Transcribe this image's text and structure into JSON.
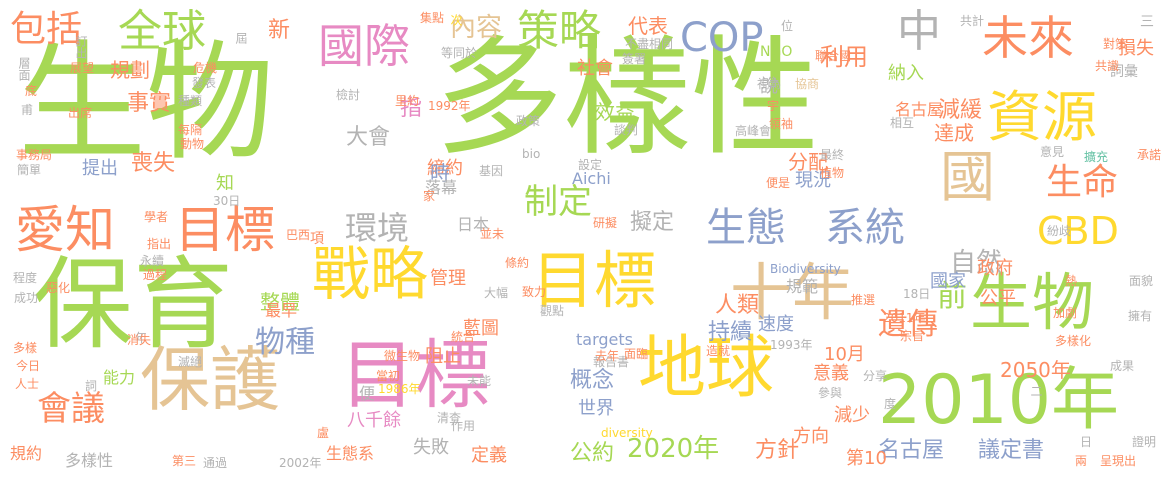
{
  "palette": {
    "green": "#a6d854",
    "yellow": "#ffd92f",
    "tan": "#e5c494",
    "pink": "#e78ac3",
    "blue": "#8da0cb",
    "orange": "#fc8d62",
    "teal": "#66c2a5",
    "grey": "#b3b3b3"
  },
  "words": [
    {
      "text": "生物",
      "color": "green"
    },
    {
      "text": "多樣性",
      "color": "green"
    },
    {
      "text": "保育",
      "color": "green"
    },
    {
      "text": "目標",
      "color": "pink"
    },
    {
      "text": "保護",
      "color": "tan"
    },
    {
      "text": "地球",
      "color": "yellow"
    },
    {
      "text": "2010年",
      "color": "green"
    },
    {
      "text": "戰略",
      "color": "yellow"
    },
    {
      "text": "目標",
      "color": "yellow"
    },
    {
      "text": "十年",
      "color": "tan"
    },
    {
      "text": "生物",
      "color": "green"
    },
    {
      "text": "資源",
      "color": "yellow"
    },
    {
      "text": "國",
      "color": "tan"
    },
    {
      "text": "愛知",
      "color": "orange"
    },
    {
      "text": "目標",
      "color": "orange"
    },
    {
      "text": "國際",
      "color": "pink"
    },
    {
      "text": "未來",
      "color": "orange"
    },
    {
      "text": "中",
      "color": "grey"
    },
    {
      "text": "全球",
      "color": "green"
    },
    {
      "text": "策略",
      "color": "green"
    },
    {
      "text": "COP",
      "color": "blue"
    },
    {
      "text": "生態",
      "color": "blue"
    },
    {
      "text": "系統",
      "color": "blue"
    },
    {
      "text": "CBD",
      "color": "yellow"
    },
    {
      "text": "生命",
      "color": "orange"
    },
    {
      "text": "包括",
      "color": "orange"
    },
    {
      "text": "會議",
      "color": "orange"
    },
    {
      "text": "制定",
      "color": "green"
    },
    {
      "text": "環境",
      "color": "grey"
    },
    {
      "text": "遺傳",
      "color": "orange"
    },
    {
      "text": "前",
      "color": "green"
    },
    {
      "text": "自然",
      "color": "grey"
    },
    {
      "text": "物種",
      "color": "blue"
    },
    {
      "text": "2020年",
      "color": "green"
    },
    {
      "text": "內容",
      "color": "tan"
    },
    {
      "text": "利用",
      "color": "orange"
    },
    {
      "text": "事實",
      "color": "orange"
    },
    {
      "text": "喪失",
      "color": "orange"
    },
    {
      "text": "大會",
      "color": "grey"
    },
    {
      "text": "擬定",
      "color": "grey"
    },
    {
      "text": "人類",
      "color": "orange"
    },
    {
      "text": "持續",
      "color": "blue"
    },
    {
      "text": "概念",
      "color": "blue"
    },
    {
      "text": "公約",
      "color": "green"
    },
    {
      "text": "方針",
      "color": "orange"
    },
    {
      "text": "名古屋",
      "color": "blue"
    },
    {
      "text": "議定書",
      "color": "blue"
    },
    {
      "text": "2050年",
      "color": "orange"
    },
    {
      "text": "整體",
      "color": "green"
    },
    {
      "text": "規範",
      "color": "grey"
    },
    {
      "text": "新",
      "color": "orange"
    },
    {
      "text": "規劃",
      "color": "orange"
    },
    {
      "text": "效益",
      "color": "green"
    },
    {
      "text": "減緩",
      "color": "orange"
    },
    {
      "text": "達成",
      "color": "orange"
    },
    {
      "text": "納入",
      "color": "green"
    },
    {
      "text": "分配",
      "color": "orange"
    },
    {
      "text": "現況",
      "color": "blue"
    },
    {
      "text": "締約",
      "color": "orange"
    },
    {
      "text": "提出",
      "color": "blue"
    },
    {
      "text": "時",
      "color": "blue"
    },
    {
      "text": "代表",
      "color": "orange"
    },
    {
      "text": "社會",
      "color": "orange"
    },
    {
      "text": "國家",
      "color": "blue"
    },
    {
      "text": "政府",
      "color": "orange"
    },
    {
      "text": "公平",
      "color": "orange"
    },
    {
      "text": "管理",
      "color": "orange"
    },
    {
      "text": "藍圖",
      "color": "orange"
    },
    {
      "text": "阻止",
      "color": "orange"
    },
    {
      "text": "10月",
      "color": "orange"
    },
    {
      "text": "意義",
      "color": "orange"
    },
    {
      "text": "速度",
      "color": "blue"
    },
    {
      "text": "世界",
      "color": "blue"
    },
    {
      "text": "減少",
      "color": "orange"
    },
    {
      "text": "方向",
      "color": "orange"
    },
    {
      "text": "第10",
      "color": "orange"
    },
    {
      "text": "定義",
      "color": "orange"
    },
    {
      "text": "失敗",
      "color": "grey"
    },
    {
      "text": "多樣性",
      "color": "grey"
    },
    {
      "text": "規約",
      "color": "orange"
    },
    {
      "text": "生態系",
      "color": "orange"
    },
    {
      "text": "八千餘",
      "color": "pink"
    },
    {
      "text": "targets",
      "color": "blue"
    },
    {
      "text": "Aichi",
      "color": "blue"
    },
    {
      "text": "項",
      "color": "orange"
    },
    {
      "text": "日本",
      "color": "grey"
    },
    {
      "text": "能力",
      "color": "green"
    },
    {
      "text": "最早",
      "color": "orange"
    },
    {
      "text": "指",
      "color": "pink"
    },
    {
      "text": "知",
      "color": "green"
    },
    {
      "text": "便",
      "color": "grey"
    },
    {
      "text": "落幕",
      "color": "grey"
    },
    {
      "text": "說",
      "color": "grey"
    },
    {
      "text": "名古屋",
      "color": "orange"
    },
    {
      "text": "NGO",
      "color": "green"
    },
    {
      "text": "共計",
      "color": "grey"
    },
    {
      "text": "三",
      "color": "grey"
    },
    {
      "text": "損失",
      "color": "orange"
    },
    {
      "text": "詞彙",
      "color": "grey"
    },
    {
      "text": "對策",
      "color": "orange"
    },
    {
      "text": "共識",
      "color": "orange"
    },
    {
      "text": "視為",
      "color": "grey"
    },
    {
      "text": "協商",
      "color": "tan"
    },
    {
      "text": "聯合國",
      "color": "orange"
    },
    {
      "text": "位",
      "color": "grey"
    },
    {
      "text": "宇",
      "color": "orange"
    },
    {
      "text": "集點",
      "color": "orange"
    },
    {
      "text": "次",
      "color": "yellow"
    },
    {
      "text": "不盡相同",
      "color": "grey"
    },
    {
      "text": "簽署",
      "color": "grey"
    },
    {
      "text": "等同於",
      "color": "grey"
    },
    {
      "text": "屆",
      "color": "grey"
    },
    {
      "text": "危機",
      "color": "orange"
    },
    {
      "text": "發表",
      "color": "grey"
    },
    {
      "text": "種類",
      "color": "grey"
    },
    {
      "text": "每隔",
      "color": "orange"
    },
    {
      "text": "動物",
      "color": "orange"
    },
    {
      "text": "訂出",
      "color": "grey"
    },
    {
      "text": "展望",
      "color": "orange"
    },
    {
      "text": "層面",
      "color": "grey"
    },
    {
      "text": "底",
      "color": "orange"
    },
    {
      "text": "甫",
      "color": "grey"
    },
    {
      "text": "出席",
      "color": "orange"
    },
    {
      "text": "事務局",
      "color": "orange"
    },
    {
      "text": "簡單",
      "color": "grey"
    },
    {
      "text": "檢討",
      "color": "grey"
    },
    {
      "text": "里約",
      "color": "orange"
    },
    {
      "text": "1992年",
      "color": "orange"
    },
    {
      "text": "政策",
      "color": "grey"
    },
    {
      "text": "談判",
      "color": "grey"
    },
    {
      "text": "bio",
      "color": "grey"
    },
    {
      "text": "基因",
      "color": "grey"
    },
    {
      "text": "設定",
      "color": "grey"
    },
    {
      "text": "便是",
      "color": "orange"
    },
    {
      "text": "高峰會",
      "color": "grey"
    },
    {
      "text": "領袖",
      "color": "orange"
    },
    {
      "text": "最終",
      "color": "grey"
    },
    {
      "text": "植物",
      "color": "orange"
    },
    {
      "text": "意見",
      "color": "grey"
    },
    {
      "text": "擴充",
      "color": "teal"
    },
    {
      "text": "承諾",
      "color": "orange"
    },
    {
      "text": "相互",
      "color": "grey"
    },
    {
      "text": "學者",
      "color": "orange"
    },
    {
      "text": "30日",
      "color": "grey"
    },
    {
      "text": "家",
      "color": "orange"
    },
    {
      "text": "並未",
      "color": "orange"
    },
    {
      "text": "研擬",
      "color": "orange"
    },
    {
      "text": "條約",
      "color": "orange"
    },
    {
      "text": "巴西",
      "color": "orange"
    },
    {
      "text": "指出",
      "color": "orange"
    },
    {
      "text": "永續",
      "color": "grey"
    },
    {
      "text": "過程",
      "color": "orange"
    },
    {
      "text": "程度",
      "color": "grey"
    },
    {
      "text": "成功",
      "color": "grey"
    },
    {
      "text": "惡化",
      "color": "orange"
    },
    {
      "text": "大幅",
      "color": "grey"
    },
    {
      "text": "致力",
      "color": "orange"
    },
    {
      "text": "觀點",
      "color": "grey"
    },
    {
      "text": "Biodiversity",
      "color": "blue"
    },
    {
      "text": "推選",
      "color": "orange"
    },
    {
      "text": "18日",
      "color": "grey"
    },
    {
      "text": "熱",
      "color": "orange"
    },
    {
      "text": "紛歧",
      "color": "grey"
    },
    {
      "text": "擁有",
      "color": "grey"
    },
    {
      "text": "面貌",
      "color": "grey"
    },
    {
      "text": "2011年",
      "color": "orange"
    },
    {
      "text": "加劇",
      "color": "orange"
    },
    {
      "text": "宗旨",
      "color": "orange"
    },
    {
      "text": "多樣化",
      "color": "orange"
    },
    {
      "text": "1993年",
      "color": "grey"
    },
    {
      "text": "分享",
      "color": "grey"
    },
    {
      "text": "成果",
      "color": "grey"
    },
    {
      "text": "參與",
      "color": "grey"
    },
    {
      "text": "二",
      "color": "grey"
    },
    {
      "text": "度",
      "color": "grey"
    },
    {
      "text": "年",
      "color": "grey"
    },
    {
      "text": "多樣",
      "color": "orange"
    },
    {
      "text": "今日",
      "color": "orange"
    },
    {
      "text": "人士",
      "color": "orange"
    },
    {
      "text": "消失",
      "color": "orange"
    },
    {
      "text": "滅絕",
      "color": "grey"
    },
    {
      "text": "微生物",
      "color": "orange"
    },
    {
      "text": "統合",
      "color": "orange"
    },
    {
      "text": "報告書",
      "color": "grey"
    },
    {
      "text": "面臨",
      "color": "orange"
    },
    {
      "text": "去年",
      "color": "orange"
    },
    {
      "text": "造就",
      "color": "orange"
    },
    {
      "text": "當初",
      "color": "orange"
    },
    {
      "text": "1986年",
      "color": "yellow"
    },
    {
      "text": "未能",
      "color": "grey"
    },
    {
      "text": "詞",
      "color": "grey"
    },
    {
      "text": "盧",
      "color": "orange"
    },
    {
      "text": "清查",
      "color": "grey"
    },
    {
      "text": "作用",
      "color": "grey"
    },
    {
      "text": "diversity",
      "color": "yellow"
    },
    {
      "text": "第三",
      "color": "orange"
    },
    {
      "text": "通過",
      "color": "grey"
    },
    {
      "text": "2002年",
      "color": "grey"
    },
    {
      "text": "日",
      "color": "grey"
    },
    {
      "text": "兩",
      "color": "orange"
    },
    {
      "text": "呈現出",
      "color": "orange"
    },
    {
      "text": "證明",
      "color": "grey"
    }
  ]
}
